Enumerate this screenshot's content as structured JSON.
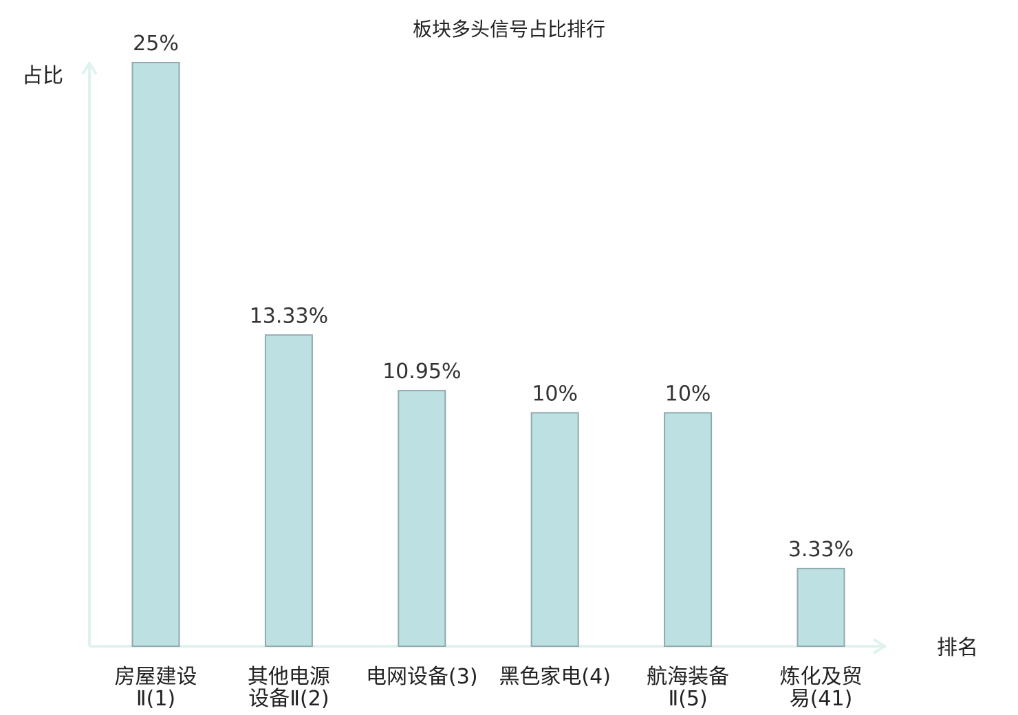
{
  "chart_data": {
    "type": "bar",
    "title": "板块多头信号占比排行",
    "ylabel": "占比",
    "xlabel": "排名",
    "ylim": [
      0,
      25
    ],
    "grid": false,
    "categories": [
      [
        "房屋建设",
        "Ⅱ(1)"
      ],
      [
        "其他电源",
        "设备Ⅱ(2)"
      ],
      [
        "电网设备(3)"
      ],
      [
        "黑色家电(4)"
      ],
      [
        "航海装备",
        "Ⅱ(5)"
      ],
      [
        "炼化及贸",
        "易(41)"
      ]
    ],
    "values": [
      25,
      13.33,
      10.95,
      10,
      10,
      3.33
    ],
    "value_labels": [
      "25%",
      "13.33%",
      "10.95%",
      "10%",
      "10%",
      "3.33%"
    ],
    "highlight_index": 5
  },
  "colors": {
    "bar_fill": "#bde0e3",
    "bar_stroke": "#8fa9ac",
    "axis": "#dff2ef",
    "text": "#222222",
    "highlight_text": "#e00000"
  }
}
